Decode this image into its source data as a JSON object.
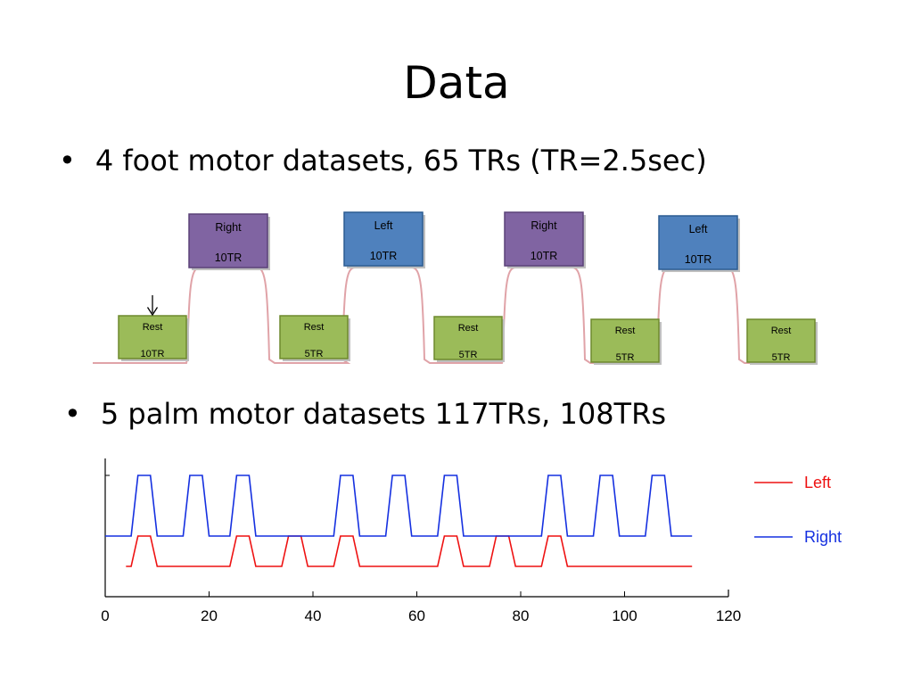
{
  "slide": {
    "title": "Data",
    "bullets": [
      "4 foot motor datasets, 65 TRs  (TR=2.5sec)",
      "5 palm motor datasets  117TRs, 108TRs"
    ]
  },
  "colors": {
    "rest_fill": "#9BBB59",
    "rest_border": "#6E8A2E",
    "right_fill": "#8064A2",
    "right_border": "#5A4278",
    "left_fill": "#4F81BD",
    "left_border": "#2C5C92",
    "paradigm_line": "#E0A3A8",
    "left_series": "#EE1111",
    "right_series": "#1530E0"
  },
  "paradigm": {
    "blocks": [
      {
        "kind": "rest",
        "label": "Rest",
        "duration": "10TR"
      },
      {
        "kind": "right",
        "label": "Right",
        "duration": "10TR"
      },
      {
        "kind": "rest",
        "label": "Rest",
        "duration": "5TR"
      },
      {
        "kind": "left",
        "label": "Left",
        "duration": "10TR"
      },
      {
        "kind": "rest",
        "label": "Rest",
        "duration": "5TR"
      },
      {
        "kind": "right",
        "label": "Right",
        "duration": "10TR"
      },
      {
        "kind": "rest",
        "label": "Rest",
        "duration": "5TR"
      },
      {
        "kind": "left",
        "label": "Left",
        "duration": "10TR"
      },
      {
        "kind": "rest",
        "label": "Rest",
        "duration": "5TR"
      }
    ]
  },
  "chart_data": {
    "type": "line",
    "title": "",
    "xlabel": "",
    "ylabel": "",
    "xlim": [
      0,
      120
    ],
    "xticks": [
      0,
      20,
      40,
      60,
      80,
      100,
      120
    ],
    "legend_position": "right",
    "series": [
      {
        "name": "Left",
        "low": 0,
        "high": 1,
        "on_intervals": [
          [
            5,
            10
          ],
          [
            24,
            29
          ],
          [
            34,
            39
          ],
          [
            44,
            49
          ],
          [
            64,
            69
          ],
          [
            74,
            79
          ],
          [
            84,
            89
          ]
        ],
        "x_range": [
          4,
          113
        ]
      },
      {
        "name": "Right",
        "low": 1,
        "high": 2,
        "on_intervals": [
          [
            5,
            10
          ],
          [
            15,
            20
          ],
          [
            24,
            29
          ],
          [
            44,
            49
          ],
          [
            54,
            59
          ],
          [
            64,
            69
          ],
          [
            84,
            89
          ],
          [
            94,
            99
          ],
          [
            104,
            109
          ]
        ],
        "x_range": [
          0,
          113
        ]
      }
    ]
  }
}
